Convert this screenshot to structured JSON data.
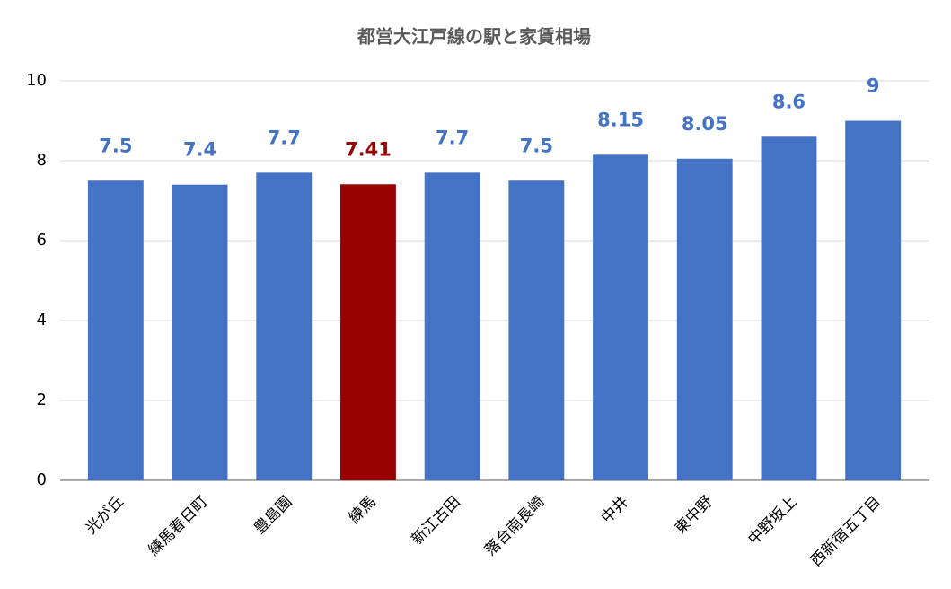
{
  "chart_data": {
    "type": "bar",
    "title": "都営大江戸線の駅と家賃相場",
    "categories": [
      "光が丘",
      "練馬春日町",
      "豊島園",
      "練馬",
      "新江古田",
      "落合南長崎",
      "中井",
      "東中野",
      "中野坂上",
      "西新宿五丁目"
    ],
    "values": [
      7.5,
      7.4,
      7.7,
      7.41,
      7.7,
      7.5,
      8.15,
      8.05,
      8.6,
      9
    ],
    "colors": [
      "#4472c4",
      "#4472c4",
      "#4472c4",
      "#990000",
      "#4472c4",
      "#4472c4",
      "#4472c4",
      "#4472c4",
      "#4472c4",
      "#4472c4"
    ],
    "ylim": [
      0,
      10
    ],
    "yticks": [
      0,
      2,
      4,
      6,
      8,
      10
    ],
    "grid": true
  }
}
